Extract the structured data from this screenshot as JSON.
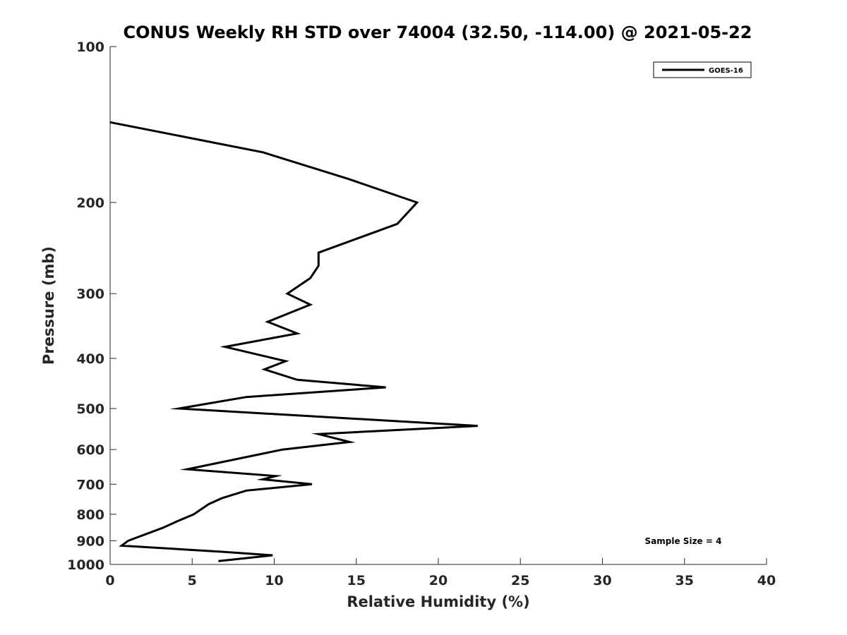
{
  "chart_data": {
    "type": "line",
    "title": "CONUS Weekly RH STD over 74004 (32.50, -114.00) @ 2021-05-22",
    "xlabel": "Relative Humidity (%)",
    "ylabel": "Pressure (mb)",
    "xlim": [
      0,
      40
    ],
    "ylim": [
      100,
      1000
    ],
    "yscale": "log",
    "y_reversed": true,
    "grid": false,
    "legend_position": "top-right",
    "x_ticks": [
      "0",
      "5",
      "10",
      "15",
      "20",
      "25",
      "30",
      "35",
      "40"
    ],
    "y_ticks": [
      "100",
      "200",
      "300",
      "400",
      "500",
      "600",
      "700",
      "800",
      "900",
      "1000"
    ],
    "annotation": "Sample Size = 4",
    "line_color": "#000000",
    "series": [
      {
        "name": "GOES-16",
        "points": [
          {
            "x": 0.0,
            "y": 140
          },
          {
            "x": 9.3,
            "y": 160
          },
          {
            "x": 14.5,
            "y": 180
          },
          {
            "x": 18.7,
            "y": 200
          },
          {
            "x": 17.5,
            "y": 220
          },
          {
            "x": 12.7,
            "y": 250
          },
          {
            "x": 12.7,
            "y": 265
          },
          {
            "x": 12.2,
            "y": 280
          },
          {
            "x": 10.8,
            "y": 300
          },
          {
            "x": 12.2,
            "y": 315
          },
          {
            "x": 9.6,
            "y": 340
          },
          {
            "x": 11.4,
            "y": 358
          },
          {
            "x": 7.0,
            "y": 380
          },
          {
            "x": 10.7,
            "y": 405
          },
          {
            "x": 9.4,
            "y": 420
          },
          {
            "x": 11.4,
            "y": 440
          },
          {
            "x": 16.8,
            "y": 455
          },
          {
            "x": 8.3,
            "y": 475
          },
          {
            "x": 4.2,
            "y": 500
          },
          {
            "x": 22.4,
            "y": 540
          },
          {
            "x": 12.7,
            "y": 560
          },
          {
            "x": 14.6,
            "y": 580
          },
          {
            "x": 10.5,
            "y": 600
          },
          {
            "x": 4.7,
            "y": 655
          },
          {
            "x": 10.1,
            "y": 675
          },
          {
            "x": 9.3,
            "y": 685
          },
          {
            "x": 12.3,
            "y": 700
          },
          {
            "x": 8.3,
            "y": 720
          },
          {
            "x": 6.8,
            "y": 745
          },
          {
            "x": 6.0,
            "y": 765
          },
          {
            "x": 5.1,
            "y": 800
          },
          {
            "x": 4.1,
            "y": 825
          },
          {
            "x": 3.2,
            "y": 850
          },
          {
            "x": 1.1,
            "y": 900
          },
          {
            "x": 0.7,
            "y": 920
          },
          {
            "x": 6.8,
            "y": 945
          },
          {
            "x": 9.9,
            "y": 960
          },
          {
            "x": 6.6,
            "y": 985
          }
        ]
      }
    ]
  }
}
